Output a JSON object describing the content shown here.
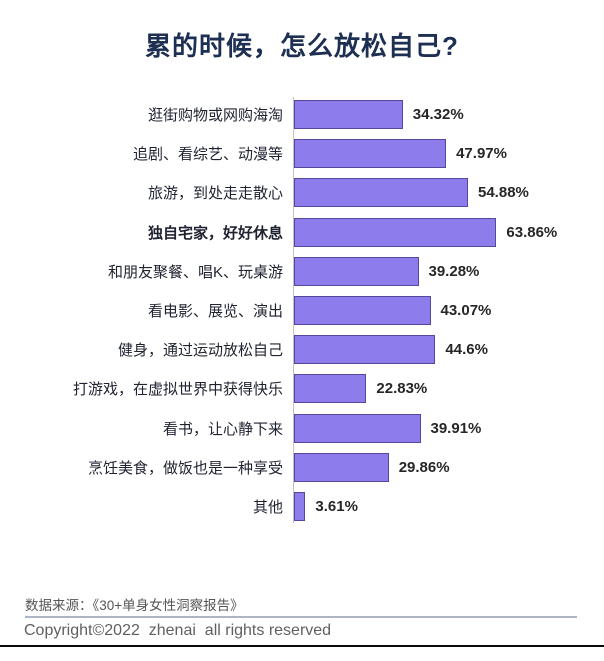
{
  "page": {
    "footer": {
      "source": "数据来源：《30+单身女性洞察报告》",
      "copyright": "Copyright©2022  zhenai  all rights reserved"
    }
  },
  "chart_data": {
    "type": "bar",
    "orientation": "horizontal",
    "title": "累的时候，怎么放松自己?",
    "categories": [
      "逛街购物或网购海淘",
      "追剧、看综艺、动漫等",
      "旅游，到处走走散心",
      "独自宅家，好好休息",
      "和朋友聚餐、唱K、玩桌游",
      "看电影、展览、演出",
      "健身，通过运动放松自己",
      "打游戏，在虚拟世界中获得快乐",
      "看书，让心静下来",
      "烹饪美食，做饭也是一种享受",
      "其他"
    ],
    "values": [
      34.32,
      47.97,
      54.88,
      63.86,
      39.28,
      43.07,
      44.6,
      22.83,
      39.91,
      29.86,
      3.61
    ],
    "value_labels": [
      "34.32%",
      "47.97%",
      "54.88%",
      "63.86%",
      "39.28%",
      "43.07%",
      "44.6%",
      "22.83%",
      "39.91%",
      "29.86%",
      "3.61%"
    ],
    "bold_category_index": 3,
    "xlabel": "",
    "ylabel": "",
    "xlim": [
      0,
      70
    ],
    "grid": false,
    "legend": false,
    "bar_color": "#8c7cec",
    "bar_border_color": "#54489c",
    "axis_line_color": "#c2c2c2",
    "title_color": "#1d2f52"
  }
}
